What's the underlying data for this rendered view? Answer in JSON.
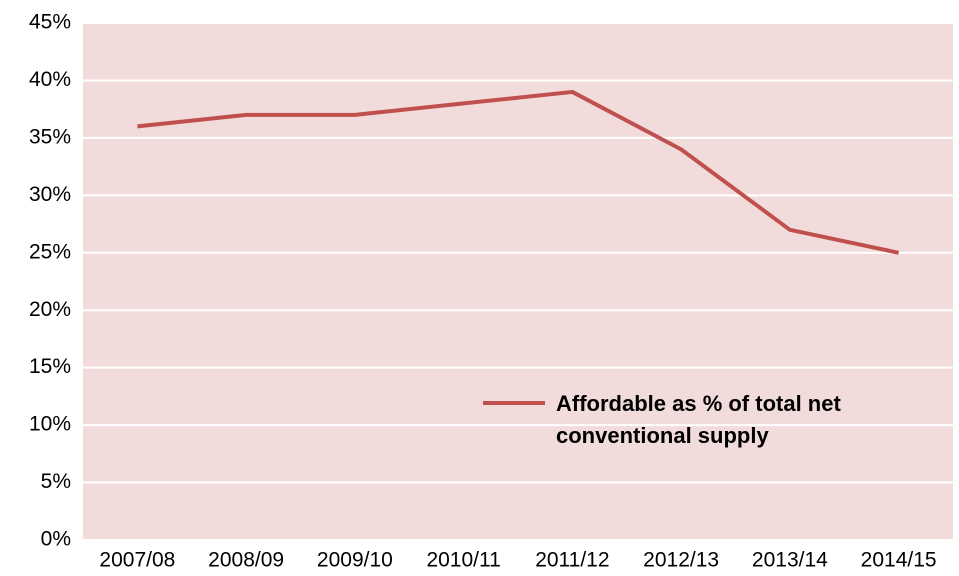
{
  "chart_data": {
    "type": "line",
    "categories": [
      "2007/08",
      "2008/09",
      "2009/10",
      "2010/11",
      "2011/12",
      "2012/13",
      "2013/14",
      "2014/15"
    ],
    "series": [
      {
        "name": "Affordable as % of total net conventional supply",
        "color": "#c0504d",
        "values": [
          36,
          37,
          37,
          38,
          39,
          34,
          27,
          25
        ]
      }
    ],
    "ylim": [
      0,
      45
    ],
    "yticks": [
      {
        "value": 0,
        "label": "0%"
      },
      {
        "value": 5,
        "label": "5%"
      },
      {
        "value": 10,
        "label": "10%"
      },
      {
        "value": 15,
        "label": "15%"
      },
      {
        "value": 20,
        "label": "20%"
      },
      {
        "value": 25,
        "label": "25%"
      },
      {
        "value": 30,
        "label": "30%"
      },
      {
        "value": 35,
        "label": "35%"
      },
      {
        "value": 40,
        "label": "40%"
      },
      {
        "value": 45,
        "label": "45%"
      }
    ],
    "grid": true,
    "background": "#f2dcdb"
  }
}
